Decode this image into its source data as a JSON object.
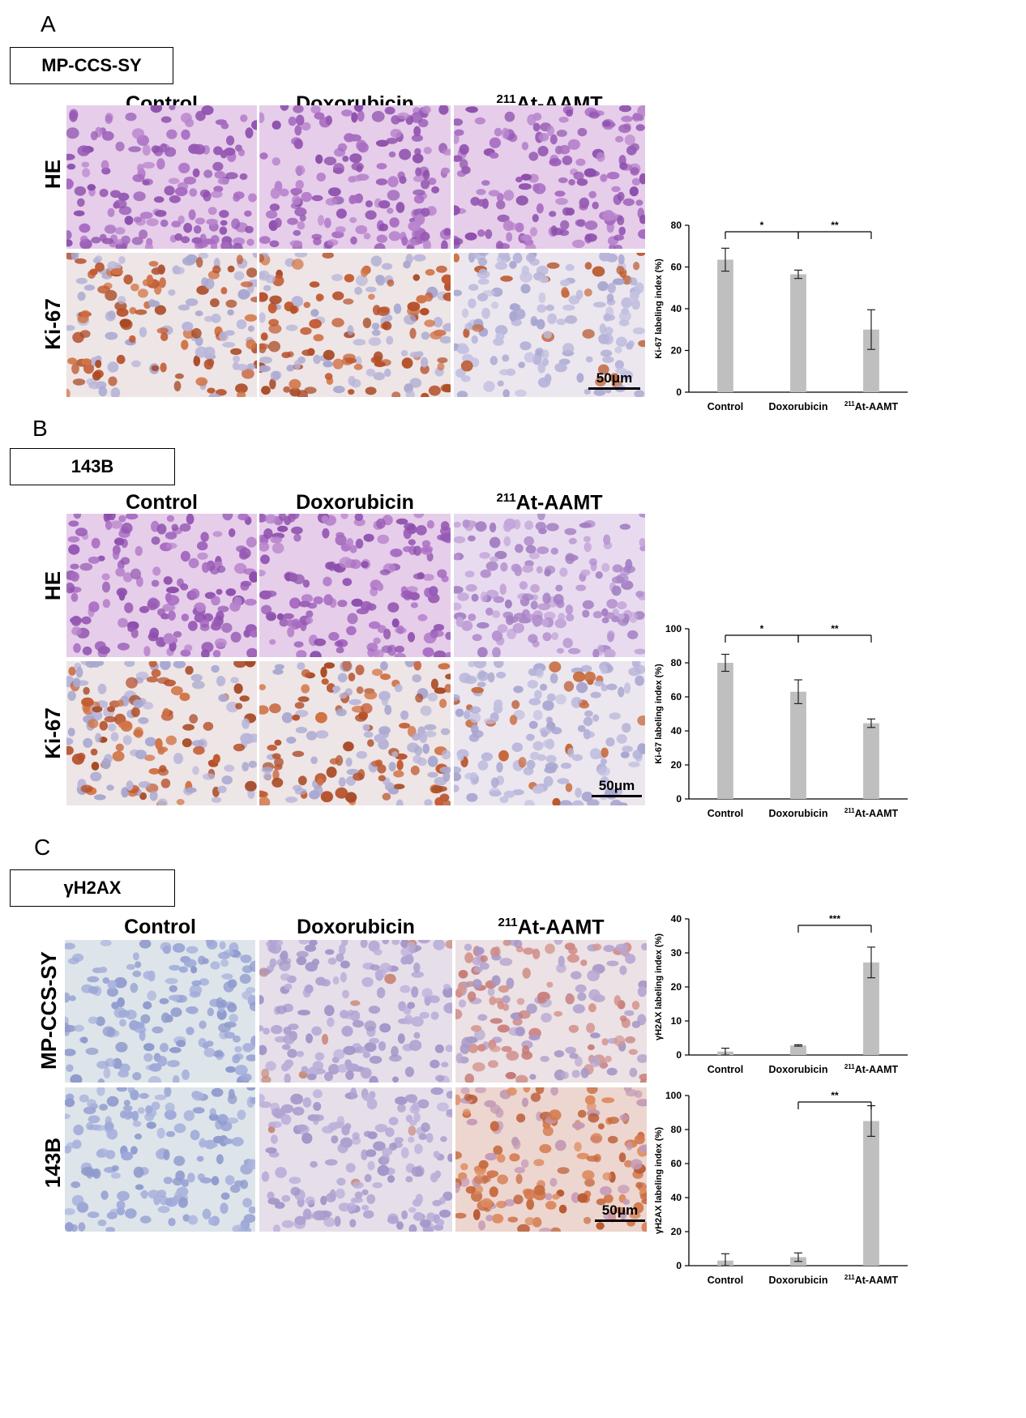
{
  "panels": {
    "A": {
      "letter": "A",
      "label": "MP-CCS-SY",
      "columns": [
        "Control",
        "Doxorubicin",
        "211At-AAMT"
      ],
      "rows": [
        "HE",
        "Ki-67"
      ],
      "scale_bar": "50μm"
    },
    "B": {
      "letter": "B",
      "label": "143B",
      "columns": [
        "Control",
        "Doxorubicin",
        "211At-AAMT"
      ],
      "rows": [
        "HE",
        "Ki-67"
      ],
      "scale_bar": "50μm"
    },
    "C": {
      "letter": "C",
      "label": "γH2AX",
      "columns": [
        "Control",
        "Doxorubicin",
        "211At-AAMT"
      ],
      "rows": [
        "MP-CCS-SY",
        "143B"
      ],
      "scale_bar": "50μm"
    }
  },
  "colors": {
    "bar": "#bfbfbf",
    "he_pink": "#c9a0d6",
    "ki67_brown": "#c8643a",
    "counterstain_blue": "#b9b8dc"
  },
  "chart_data": [
    {
      "id": "chartA",
      "type": "bar",
      "categories": [
        "Control",
        "Doxorubicin",
        "211At-AAMT"
      ],
      "values": [
        63.5,
        56.5,
        30
      ],
      "errors": [
        5.5,
        2,
        9.5
      ],
      "ylabel": "Ki-67 labeling index (%)",
      "ylim": [
        0,
        80
      ],
      "yticks": [
        0,
        20,
        40,
        60,
        80
      ],
      "significance": [
        {
          "from": 0,
          "to": 1,
          "label": "*"
        },
        {
          "from": 1,
          "to": 2,
          "label": "**"
        }
      ]
    },
    {
      "id": "chartB",
      "type": "bar",
      "categories": [
        "Control",
        "Doxorubicin",
        "211At-AAMT"
      ],
      "values": [
        80,
        63,
        44.5
      ],
      "errors": [
        5,
        7,
        2.5
      ],
      "ylabel": "Ki-67 labeling index (%)",
      "ylim": [
        0,
        100
      ],
      "yticks": [
        0,
        20,
        40,
        60,
        80,
        100
      ],
      "significance": [
        {
          "from": 0,
          "to": 1,
          "label": "*"
        },
        {
          "from": 1,
          "to": 2,
          "label": "**"
        }
      ]
    },
    {
      "id": "chartC1",
      "type": "bar",
      "categories": [
        "Control",
        "Doxorubicin",
        "211At-AAMT"
      ],
      "values": [
        1,
        2.8,
        27.2
      ],
      "errors": [
        1,
        0.2,
        4.5
      ],
      "ylabel": "γH2AX labeling index (%)",
      "ylim": [
        0,
        40
      ],
      "yticks": [
        0,
        10,
        20,
        30,
        40
      ],
      "significance": [
        {
          "from": 1,
          "to": 2,
          "label": "***"
        }
      ]
    },
    {
      "id": "chartC2",
      "type": "bar",
      "categories": [
        "Control",
        "Doxorubicin",
        "211At-AAMT"
      ],
      "values": [
        3,
        5,
        85
      ],
      "errors": [
        4,
        2.5,
        9
      ],
      "ylabel": "γH2AX labeling index (%)",
      "ylim": [
        0,
        100
      ],
      "yticks": [
        0,
        20,
        40,
        60,
        80,
        100
      ],
      "significance": [
        {
          "from": 1,
          "to": 2,
          "label": "**"
        }
      ]
    }
  ]
}
